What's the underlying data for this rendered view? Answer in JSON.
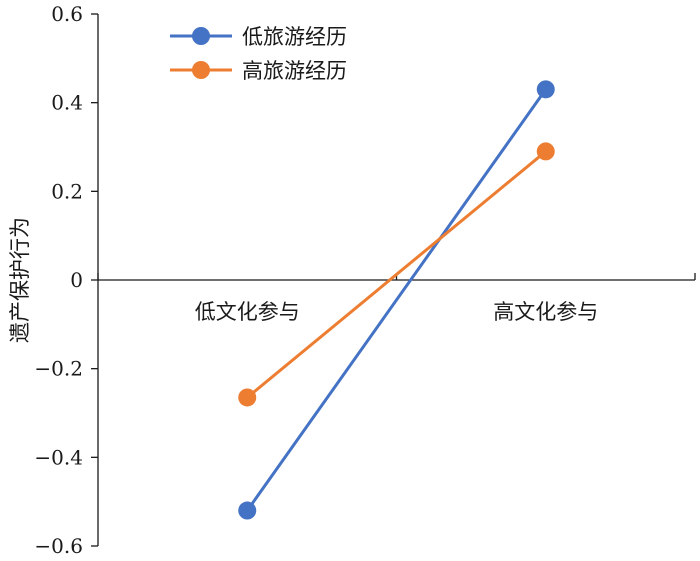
{
  "chart_data": {
    "type": "line",
    "title": "",
    "xlabel": "",
    "ylabel": "遗产保护行为",
    "categories": [
      "低文化参与",
      "高文化参与"
    ],
    "ylim": [
      -0.6,
      0.6
    ],
    "yticks": [
      0.6,
      0.4,
      0.2,
      0,
      -0.2,
      -0.4,
      -0.6
    ],
    "ytick_labels": [
      "0.6",
      "0.4",
      "0.2",
      "0",
      "−0.2",
      "−0.4",
      "−0.6"
    ],
    "grid": false,
    "legend_position": "top-left",
    "series": [
      {
        "name": "低旅游经历",
        "values": [
          -0.52,
          0.43
        ],
        "color": "#4472C4"
      },
      {
        "name": "高旅游经历",
        "values": [
          -0.265,
          0.29
        ],
        "color": "#ED7D31"
      }
    ]
  }
}
